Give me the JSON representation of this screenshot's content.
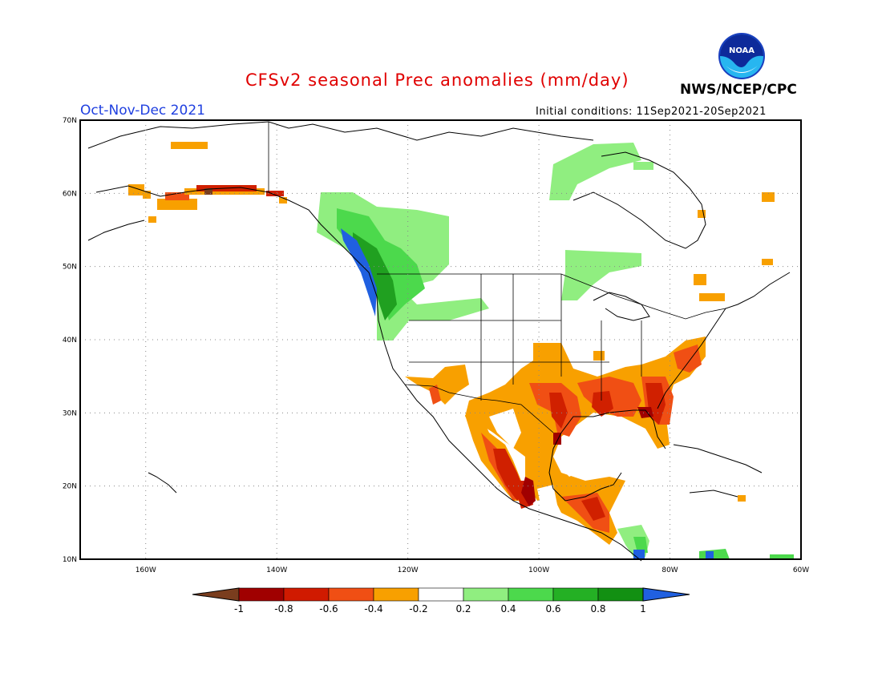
{
  "header": {
    "title": "CFSv2 seasonal Prec anomalies (mm/day)",
    "season": "Oct-Nov-Dec 2021",
    "initial_conditions": "Initial conditions: 11Sep2021-20Sep2021",
    "agency": "NWS/NCEP/CPC",
    "logo_text": "NOAA"
  },
  "axes": {
    "lat_labels": [
      "70N",
      "60N",
      "50N",
      "40N",
      "30N",
      "20N",
      "10N"
    ],
    "lon_labels": [
      "160W",
      "140W",
      "120W",
      "100W",
      "80W",
      "60W"
    ]
  },
  "colorbar": {
    "tick_labels": [
      "-1",
      "-0.8",
      "-0.6",
      "-0.4",
      "-0.2",
      "0.2",
      "0.4",
      "0.6",
      "0.8",
      "1"
    ],
    "colors": [
      "#7a3d1e",
      "#a00000",
      "#d01a00",
      "#f04f14",
      "#f8a000",
      "#ffffff",
      "#90ee80",
      "#4cd94c",
      "#24b024",
      "#129012",
      "#2060e0"
    ]
  },
  "map_colors": {
    "dry_extreme": "#7a3d1e",
    "dry_strong": "#a00000",
    "dry_mod": "#d02000",
    "dry_light": "#f8a000",
    "wet_light": "#90ee80",
    "wet_mod": "#4cd94c",
    "wet_strong": "#20a020",
    "wet_extreme": "#2060e0"
  }
}
